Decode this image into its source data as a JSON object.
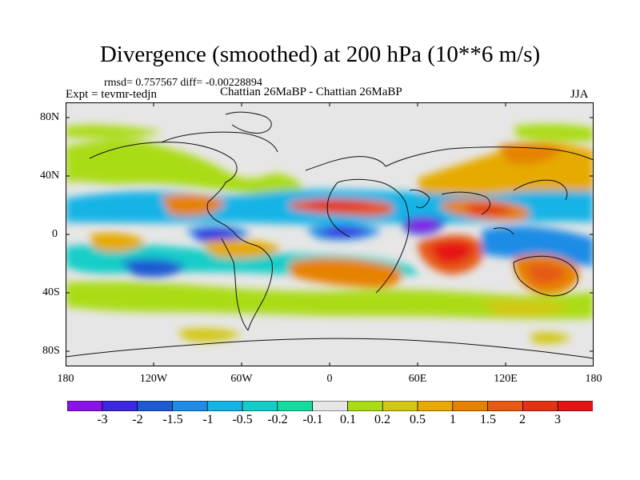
{
  "header": {
    "title": "Divergence (smoothed) at 200 hPa (10**6 m/s)",
    "stats": "rmsd= 0.757567 diff= -0.00228894",
    "expt": "Expt = tevmr-tedjn",
    "case": "Chattian  26MaBP - Chattian  26MaBP",
    "season": "JJA"
  },
  "axes": {
    "lon_labels": [
      "180",
      "120W",
      "60W",
      "0",
      "60E",
      "120E",
      "180"
    ],
    "lat_labels": [
      "80N",
      "40N",
      "0",
      "40S",
      "80S"
    ]
  },
  "colorbar": {
    "labels": [
      "-3",
      "-2",
      "-1.5",
      "-1",
      "-0.5",
      "-0.2",
      "-0.1",
      "0.1",
      "0.2",
      "0.5",
      "1",
      "1.5",
      "2",
      "3"
    ],
    "colors": [
      "#8a14e8",
      "#3c28e0",
      "#1e5ad2",
      "#1e8ce6",
      "#14b4e6",
      "#14cdc8",
      "#14dca0",
      "#e6e6e6",
      "#aadc14",
      "#d2c814",
      "#e6aa00",
      "#e68200",
      "#e65a14",
      "#e63214",
      "#e61414"
    ]
  },
  "map": {
    "background_color": "#e6e6e6"
  }
}
